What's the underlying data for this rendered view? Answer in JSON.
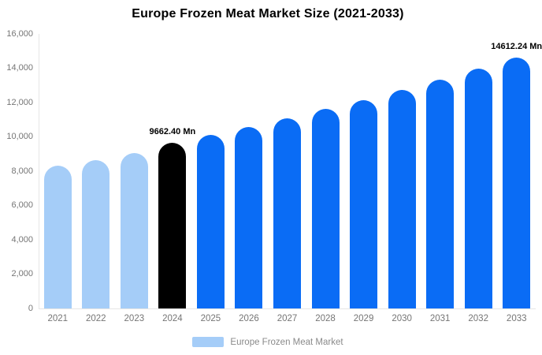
{
  "title": "Europe Frozen Meat Market Size (2021-2033)",
  "colors": {
    "historical_bar": "#a5cdf8",
    "base_year_bar": "#000000",
    "forecast_bar": "#0a6cf5",
    "axis_text": "#757575",
    "axis_line": "#e6e6e6",
    "legend_text": "#8a8a8a",
    "title_text": "#000000",
    "value_label_text": "#000000"
  },
  "legend": {
    "label": "Europe Frozen Meat Market",
    "swatch_color": "#a5cdf8"
  },
  "chart_data": {
    "type": "bar",
    "title": "Europe Frozen Meat Market Size (2021-2033)",
    "xlabel": "",
    "ylabel": "",
    "unit": "Mn",
    "categories": [
      "2021",
      "2022",
      "2023",
      "2024",
      "2025",
      "2026",
      "2027",
      "2028",
      "2029",
      "2030",
      "2031",
      "2032",
      "2033"
    ],
    "values": [
      8300,
      8660,
      9050,
      9662.4,
      10117,
      10593,
      11091,
      11612,
      12158,
      12730,
      13329,
      13956,
      14612.24
    ],
    "segments": [
      "historical",
      "historical",
      "historical",
      "base",
      "forecast",
      "forecast",
      "forecast",
      "forecast",
      "forecast",
      "forecast",
      "forecast",
      "forecast",
      "forecast"
    ],
    "data_labels": [
      "",
      "",
      "",
      "9662.40 Mn",
      "",
      "",
      "",
      "",
      "",
      "",
      "",
      "",
      "14612.24 Mn"
    ],
    "ylim": [
      0,
      16000
    ],
    "ytick_values": [
      0,
      2000,
      4000,
      6000,
      8000,
      10000,
      12000,
      14000,
      16000
    ],
    "ytick_labels": [
      "0",
      "2,000",
      "4,000",
      "6,000",
      "8,000",
      "10,000",
      "12,000",
      "14,000",
      "16,000"
    ],
    "grid": false,
    "legend_position": "bottom",
    "legend_entries": [
      "Europe Frozen Meat Market"
    ]
  }
}
